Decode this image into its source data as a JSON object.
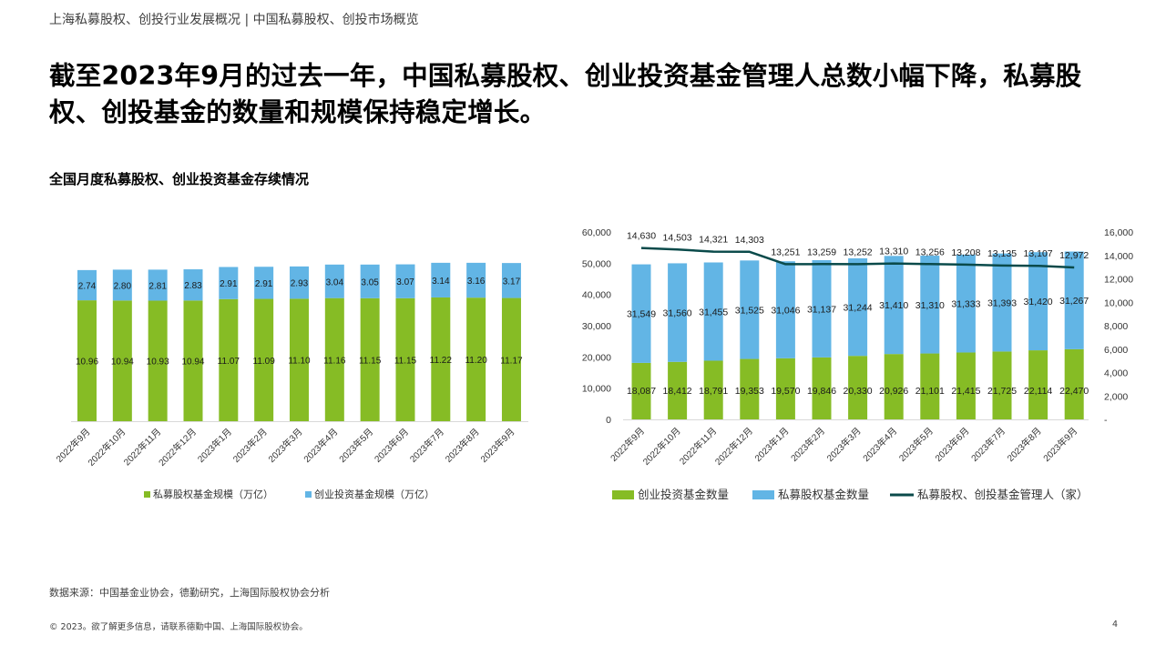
{
  "header": {
    "breadcrumb": "上海私募股权、创投行业发展概况 | 中国私募股权、创投市场概览",
    "headline": "截至2023年9月的过去一年，中国私募股权、创业投资基金管理人总数小幅下降，私募股权、创投基金的数量和规模保持稳定增长。",
    "subtitle": "全国月度私募股权、创业投资基金存续情况"
  },
  "footer": {
    "source": "数据来源：中国基金业协会，德勤研究，上海国际股权协会分析",
    "copyright": "© 2023。欲了解更多信息，请联系德勤中国、上海国际股权协会。",
    "page_number": "4"
  },
  "colors": {
    "green": "#86bc25",
    "blue": "#62b5e5",
    "line": "#0a4a4a"
  },
  "chart_data": [
    {
      "type": "bar",
      "stacked": true,
      "categories": [
        "2022年9月",
        "2022年10月",
        "2022年11月",
        "2022年12月",
        "2023年1月",
        "2023年2月",
        "2023年3月",
        "2023年4月",
        "2023年5月",
        "2023年6月",
        "2023年7月",
        "2023年8月",
        "2023年9月"
      ],
      "series": [
        {
          "name": "私募股权基金规模（万亿）",
          "values": [
            10.96,
            10.94,
            10.93,
            10.94,
            11.07,
            11.09,
            11.1,
            11.16,
            11.15,
            11.15,
            11.22,
            11.2,
            11.17
          ],
          "color": "#86bc25"
        },
        {
          "name": "创业投资基金规模（万亿）",
          "values": [
            2.74,
            2.8,
            2.81,
            2.83,
            2.91,
            2.91,
            2.93,
            3.04,
            3.05,
            3.07,
            3.14,
            3.16,
            3.17
          ],
          "color": "#62b5e5"
        }
      ],
      "data_labels": {
        "green": [
          "10.96",
          "10.94",
          "10.93",
          "10.94",
          "11.07",
          "11.09",
          "11.10",
          "11.16",
          "11.15",
          "11.15",
          "11.22",
          "11.20",
          "11.17"
        ],
        "blue": [
          "2.74",
          "2.80",
          "2.81",
          "2.83",
          "2.91",
          "2.91",
          "2.93",
          "3.04",
          "3.05",
          "3.07",
          "3.14",
          "3.16",
          "3.17"
        ]
      },
      "ylim": [
        0,
        16
      ],
      "y_axis_visible": false,
      "legend_position": "bottom"
    },
    {
      "type": "bar",
      "stacked": true,
      "categories": [
        "2022年9月",
        "2022年10月",
        "2022年11月",
        "2022年12月",
        "2023年1月",
        "2023年2月",
        "2023年3月",
        "2023年4月",
        "2023年5月",
        "2023年6月",
        "2023年7月",
        "2023年8月",
        "2023年9月"
      ],
      "series": [
        {
          "name": "创业投资基金数量",
          "values": [
            18087,
            18412,
            18791,
            19353,
            19570,
            19846,
            20330,
            20926,
            21101,
            21415,
            21725,
            22114,
            22470
          ],
          "color": "#86bc25",
          "axis": "left"
        },
        {
          "name": "私募股权基金数量",
          "values": [
            31549,
            31560,
            31455,
            31525,
            31046,
            31137,
            31244,
            31410,
            31310,
            31333,
            31393,
            31420,
            31267
          ],
          "color": "#62b5e5",
          "axis": "left"
        },
        {
          "name": "私募股权、创投基金管理人（家）",
          "type": "line",
          "values": [
            14630,
            14503,
            14321,
            14303,
            13251,
            13259,
            13252,
            13310,
            13256,
            13208,
            13135,
            13107,
            12972
          ],
          "color": "#0a4a4a",
          "axis": "right"
        }
      ],
      "data_labels": {
        "green": [
          "18,087",
          "18,412",
          "18,791",
          "19,353",
          "19,570",
          "19,846",
          "20,330",
          "20,926",
          "21,101",
          "21,415",
          "21,725",
          "22,114",
          "22,470"
        ],
        "blue": [
          "31,549",
          "31,560",
          "31,455",
          "31,525",
          "31,046",
          "31,137",
          "31,244",
          "31,410",
          "31,310",
          "31,333",
          "31,393",
          "31,420",
          "31,267"
        ],
        "line": [
          "14,630",
          "14,503",
          "14,321",
          "14,303",
          "13,251",
          "13,259",
          "13,252",
          "13,310",
          "13,256",
          "13,208",
          "13,135",
          "13,107",
          "12,972"
        ]
      },
      "y_left": {
        "range": [
          0,
          60000
        ],
        "ticks": [
          "0",
          "10,000",
          "20,000",
          "30,000",
          "40,000",
          "50,000",
          "60,000"
        ]
      },
      "y_right": {
        "range": [
          0,
          16000
        ],
        "ticks": [
          "-",
          "2,000",
          "4,000",
          "6,000",
          "8,000",
          "10,000",
          "12,000",
          "14,000",
          "16,000"
        ]
      },
      "legend_position": "bottom"
    }
  ]
}
